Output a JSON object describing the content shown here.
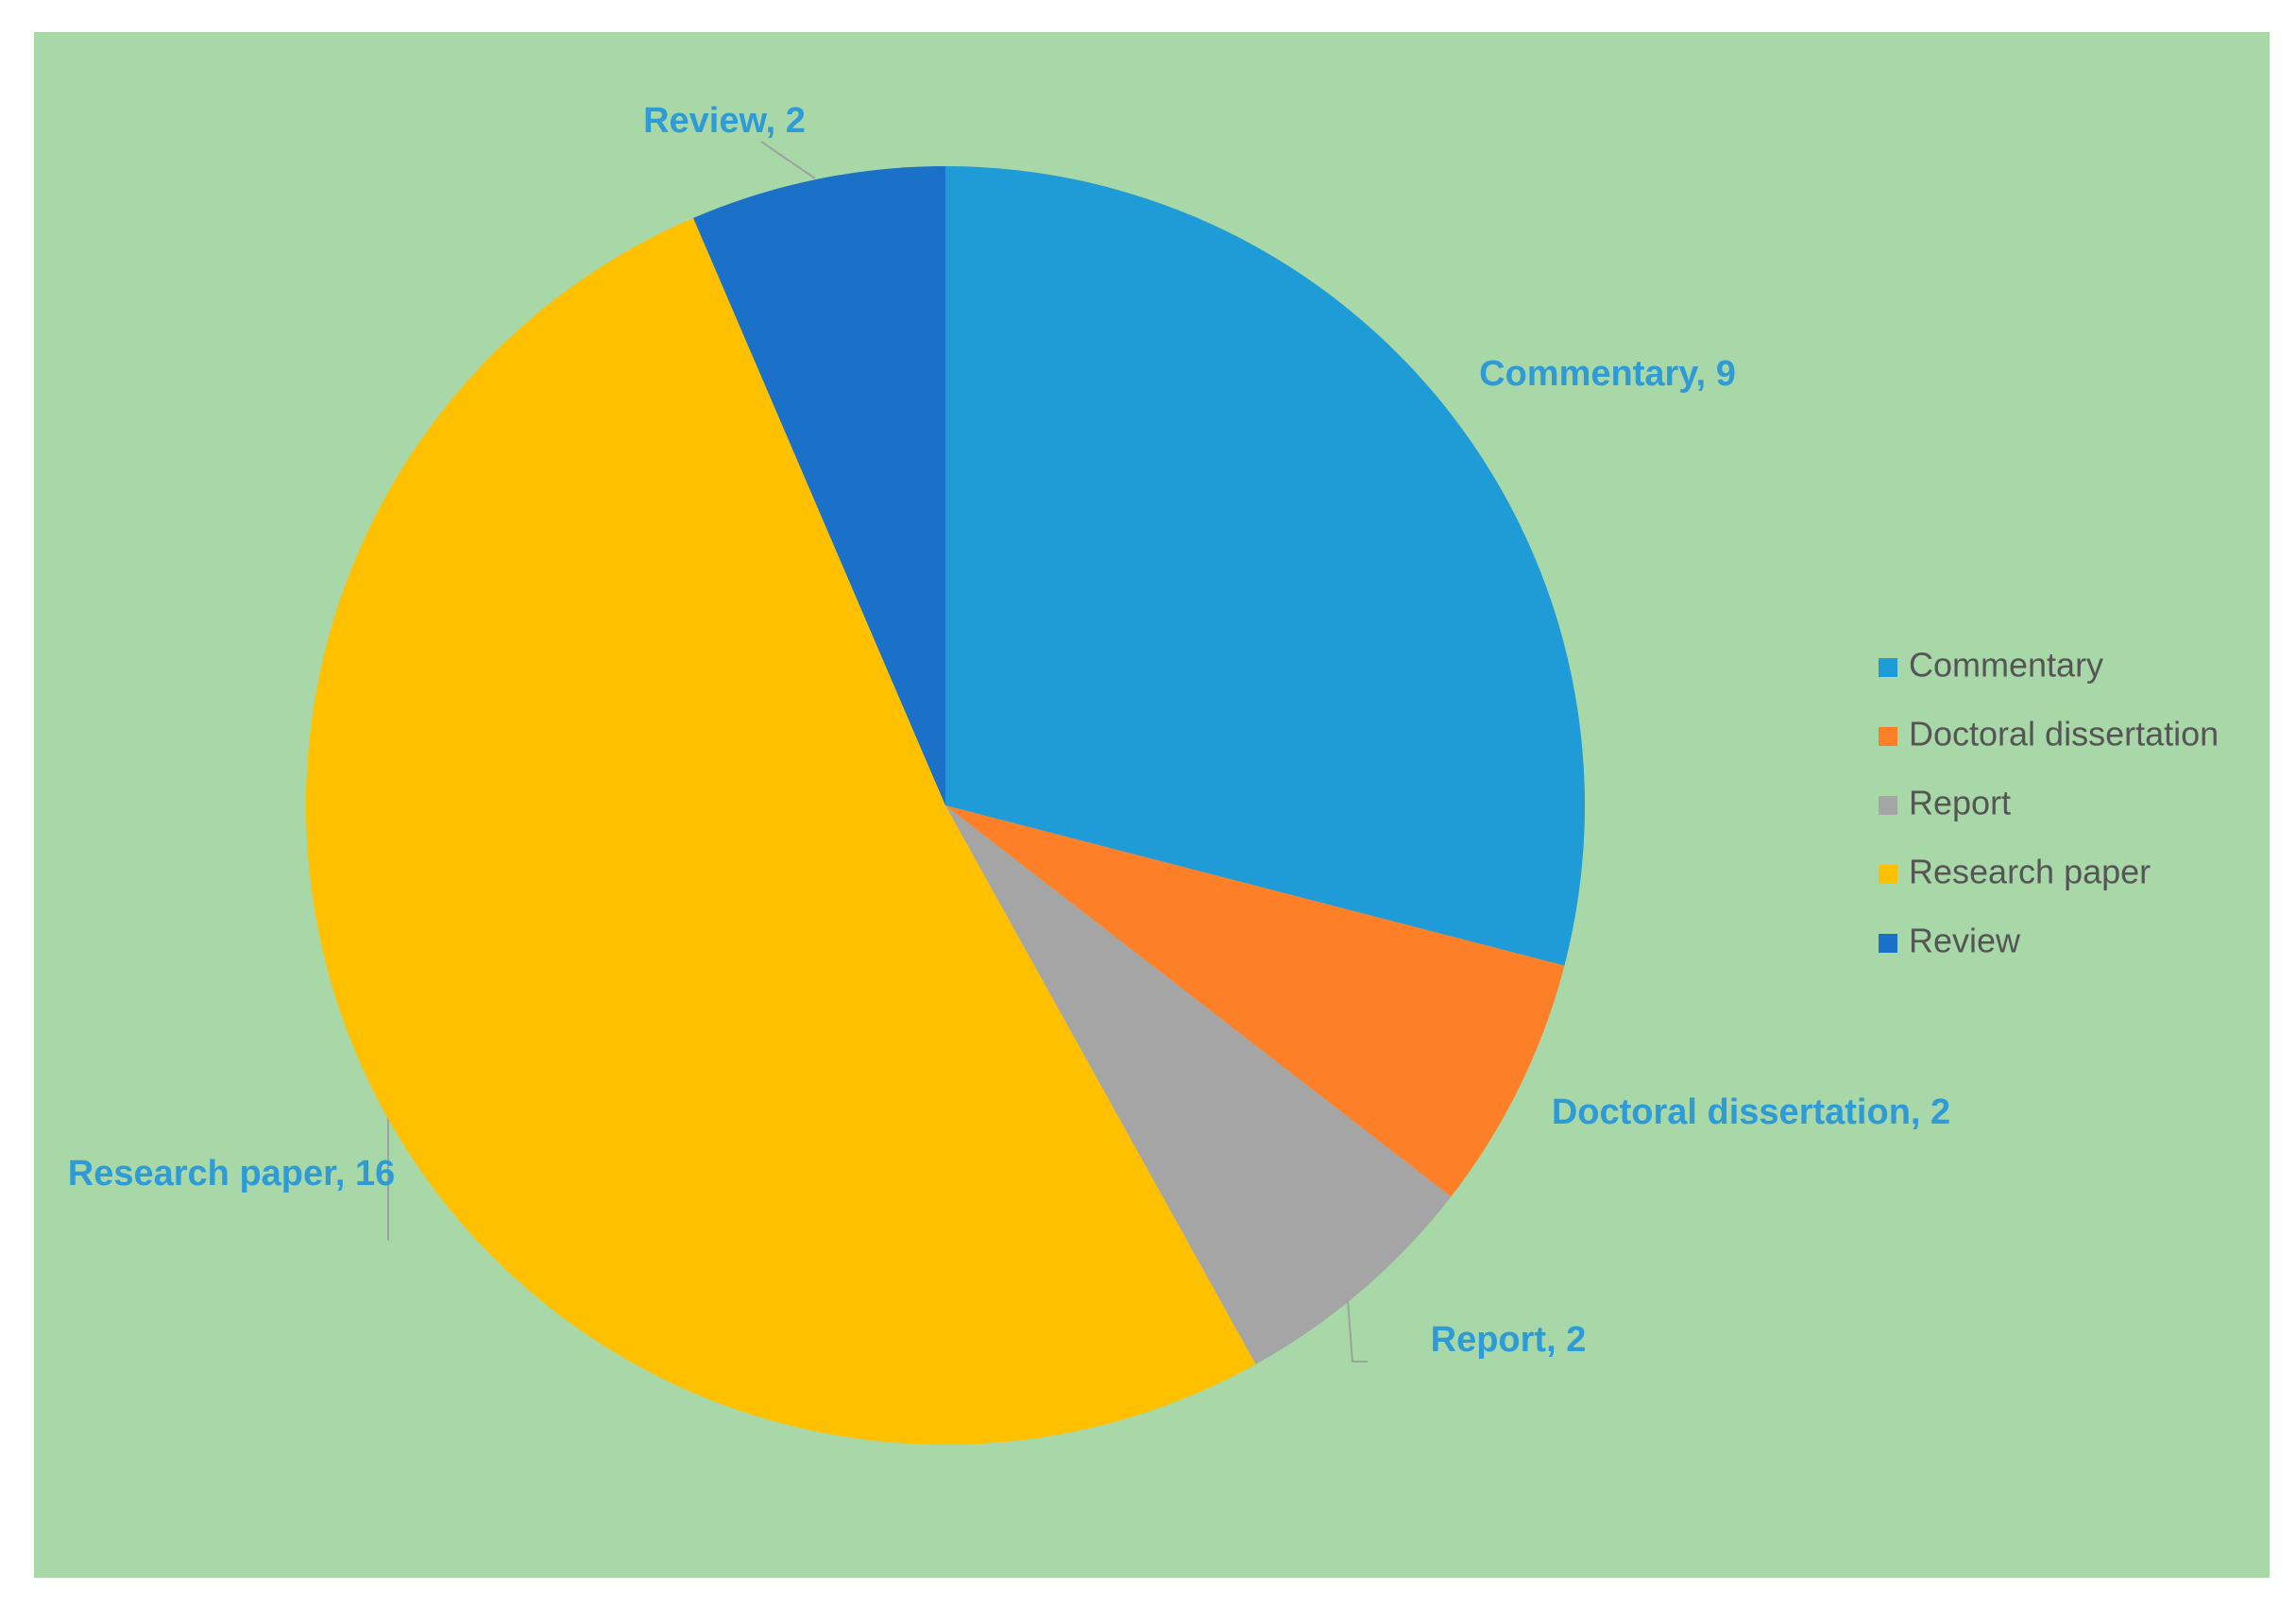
{
  "chart_data": {
    "type": "pie",
    "categories": [
      "Commentary",
      "Doctoral dissertation",
      "Report",
      "Research paper",
      "Review"
    ],
    "values": [
      9,
      2,
      2,
      16,
      2
    ],
    "value_labels": [
      "Commentary, 9",
      "Doctoral dissertation, 2",
      "Report, 2",
      "Research paper, 16",
      "Review, 2"
    ],
    "colors": [
      "#1f9bd7",
      "#fd7f27",
      "#a5a5a5",
      "#ffc000",
      "#1a71c7"
    ],
    "legend": "right"
  }
}
